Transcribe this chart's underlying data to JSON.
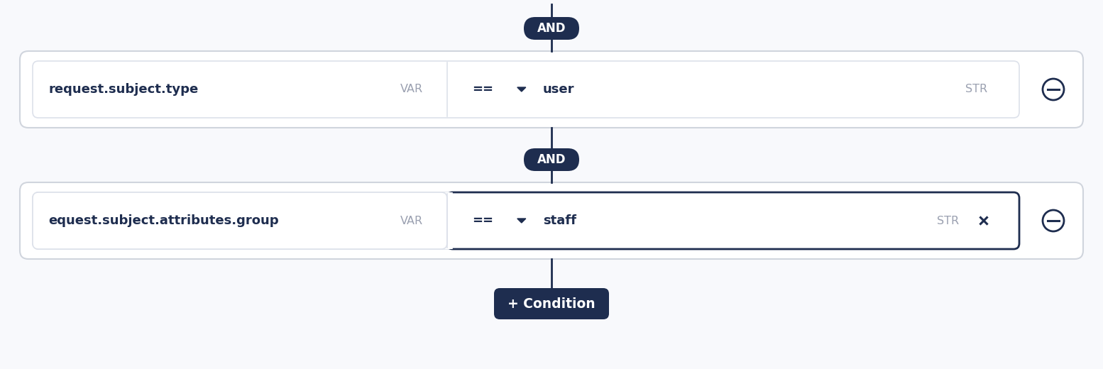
{
  "bg_color": "#f8f9fc",
  "dark_navy": "#1e2d4f",
  "light_gray_border": "#d0d5dd",
  "inner_border": "#dde1ea",
  "text_dark": "#1e2d4f",
  "text_gray": "#9aa0b0",
  "row1": {
    "left_text": "request.subject.type",
    "left_badge": "VAR",
    "op": "==",
    "right_text": "user",
    "right_badge": "STR",
    "right_active": false
  },
  "row2": {
    "left_text": "equest.subject.attributes.group",
    "left_badge": "VAR",
    "op": "==",
    "right_text": "staff",
    "right_badge": "STR",
    "right_active": true
  },
  "and_text": "AND",
  "condition_text": "+ Condition"
}
